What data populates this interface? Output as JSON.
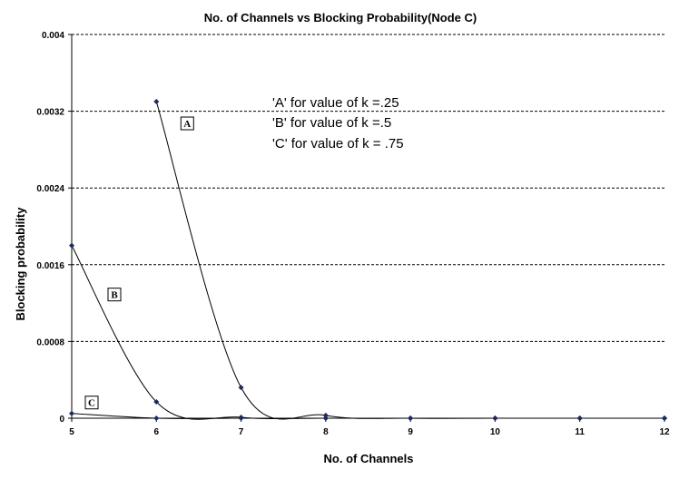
{
  "chart_data": {
    "type": "line",
    "title": "No. of Channels vs Blocking Probability(Node C)",
    "xlabel": "No. of Channels",
    "ylabel": "Blocking probability",
    "xlim": [
      5,
      12
    ],
    "ylim": [
      0,
      0.004
    ],
    "x_ticks": [
      "5",
      "6",
      "7",
      "8",
      "9",
      "10",
      "11",
      "12"
    ],
    "y_ticks": [
      "0",
      "0.0008",
      "0.0016",
      "0.0024",
      "0.0032",
      "0.004"
    ],
    "grid": "horizontal dashed",
    "smooth": true,
    "annotations": [
      "'A' for value of k =.25",
      "'B' for value of k =.5",
      "'C' for value of k = .75"
    ],
    "series": [
      {
        "name": "A",
        "x": [
          6,
          7,
          8,
          9,
          10,
          11,
          12
        ],
        "values": [
          0.0033,
          0.00032,
          3e-05,
          0.0,
          0.0,
          0.0,
          0.0
        ]
      },
      {
        "name": "B",
        "x": [
          5,
          6,
          7,
          8,
          9,
          10,
          11,
          12
        ],
        "values": [
          0.0018,
          0.00017,
          1e-05,
          0.0,
          0.0,
          0.0,
          0.0,
          0.0
        ]
      },
      {
        "name": "C",
        "x": [
          5,
          6,
          7,
          8,
          9,
          10,
          11,
          12
        ],
        "values": [
          5e-05,
          0.0,
          0.0,
          0.0,
          0.0,
          0.0,
          0.0,
          0.0
        ]
      }
    ],
    "colors": {
      "line": "#000000",
      "marker": "#1f2a5c",
      "grid": "#000000"
    }
  }
}
